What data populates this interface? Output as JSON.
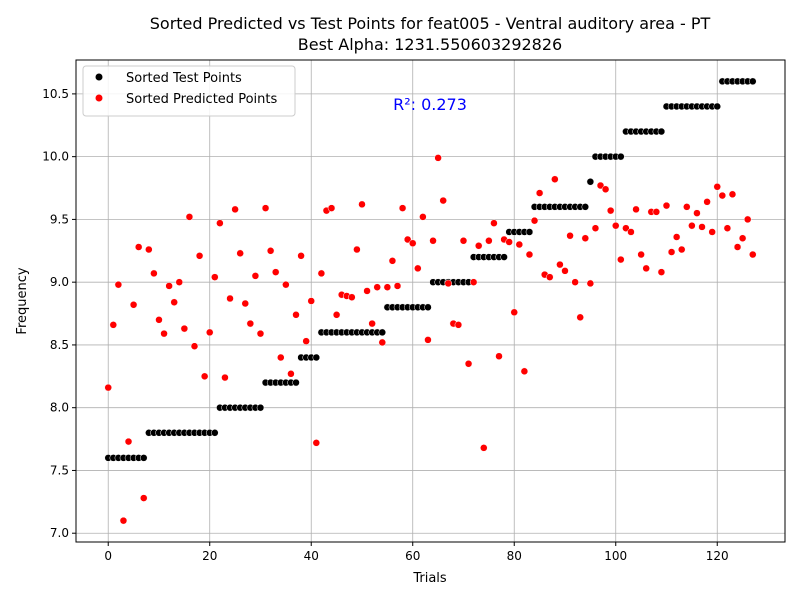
{
  "chart_data": {
    "type": "scatter",
    "title": "Sorted Predicted vs Test Points for feat005 - Ventral auditory area - PT",
    "subtitle": "Best Alpha: 1231.550603292826",
    "xlabel": "Trials",
    "ylabel": "Frequency",
    "xlim": [
      -6.35,
      133.35
    ],
    "ylim": [
      6.93,
      10.77
    ],
    "xticks": [
      0,
      20,
      40,
      60,
      80,
      100,
      120
    ],
    "yticks": [
      7.0,
      7.5,
      8.0,
      8.5,
      9.0,
      9.5,
      10.0,
      10.5
    ],
    "grid": true,
    "legend_position": "top-left",
    "annotation": "R²: 0.273",
    "annotation_color": "#0000ff",
    "series": [
      {
        "name": "Sorted Test Points",
        "color": "#000000",
        "y": [
          7.6,
          7.6,
          7.6,
          7.6,
          7.6,
          7.6,
          7.6,
          7.6,
          7.8,
          7.8,
          7.8,
          7.8,
          7.8,
          7.8,
          7.8,
          7.8,
          7.8,
          7.8,
          7.8,
          7.8,
          7.8,
          7.8,
          8.0,
          8.0,
          8.0,
          8.0,
          8.0,
          8.0,
          8.0,
          8.0,
          8.0,
          8.2,
          8.2,
          8.2,
          8.2,
          8.2,
          8.2,
          8.2,
          8.4,
          8.4,
          8.4,
          8.4,
          8.6,
          8.6,
          8.6,
          8.6,
          8.6,
          8.6,
          8.6,
          8.6,
          8.6,
          8.6,
          8.6,
          8.6,
          8.6,
          8.8,
          8.8,
          8.8,
          8.8,
          8.8,
          8.8,
          8.8,
          8.8,
          8.8,
          9.0,
          9.0,
          9.0,
          9.0,
          9.0,
          9.0,
          9.0,
          9.0,
          9.2,
          9.2,
          9.2,
          9.2,
          9.2,
          9.2,
          9.2,
          9.4,
          9.4,
          9.4,
          9.4,
          9.4,
          9.6,
          9.6,
          9.6,
          9.6,
          9.6,
          9.6,
          9.6,
          9.6,
          9.6,
          9.6,
          9.6,
          9.8,
          10.0,
          10.0,
          10.0,
          10.0,
          10.0,
          10.0,
          10.2,
          10.2,
          10.2,
          10.2,
          10.2,
          10.2,
          10.2,
          10.2,
          10.4,
          10.4,
          10.4,
          10.4,
          10.4,
          10.4,
          10.4,
          10.4,
          10.4,
          10.4,
          10.4,
          10.6,
          10.6,
          10.6,
          10.6,
          10.6,
          10.6,
          10.6
        ]
      },
      {
        "name": "Sorted Predicted Points",
        "color": "#ff0000",
        "y": [
          8.16,
          8.66,
          8.98,
          7.1,
          7.73,
          8.82,
          9.28,
          7.28,
          9.26,
          9.07,
          8.7,
          8.59,
          8.97,
          8.84,
          9.0,
          8.63,
          9.52,
          8.49,
          9.21,
          8.25,
          8.6,
          9.04,
          9.47,
          8.24,
          8.87,
          9.58,
          9.23,
          8.83,
          8.67,
          9.05,
          8.59,
          9.59,
          9.25,
          9.08,
          8.4,
          8.98,
          8.27,
          8.74,
          9.21,
          8.53,
          8.85,
          7.72,
          9.07,
          9.57,
          9.59,
          8.74,
          8.9,
          8.89,
          8.88,
          9.26,
          9.62,
          8.93,
          8.67,
          8.96,
          8.52,
          8.96,
          9.17,
          8.97,
          9.59,
          9.34,
          9.31,
          9.11,
          9.52,
          8.54,
          9.33,
          9.99,
          9.65,
          8.99,
          8.67,
          8.66,
          9.33,
          8.35,
          9.0,
          9.29,
          7.68,
          9.33,
          9.47,
          8.41,
          9.34,
          9.32,
          8.76,
          9.3,
          8.29,
          9.22,
          9.49,
          9.71,
          9.06,
          9.04,
          9.82,
          9.14,
          9.09,
          9.37,
          9.0,
          8.72,
          9.35,
          8.99,
          9.43,
          9.77,
          9.74,
          9.57,
          9.45,
          9.18,
          9.43,
          9.4,
          9.58,
          9.22,
          9.11,
          9.56,
          9.56,
          9.08,
          9.61,
          9.24,
          9.36,
          9.26,
          9.6,
          9.45,
          9.55,
          9.44,
          9.64,
          9.4,
          9.76,
          9.69,
          9.43,
          9.7,
          9.28,
          9.35,
          9.5,
          9.22
        ]
      }
    ]
  }
}
